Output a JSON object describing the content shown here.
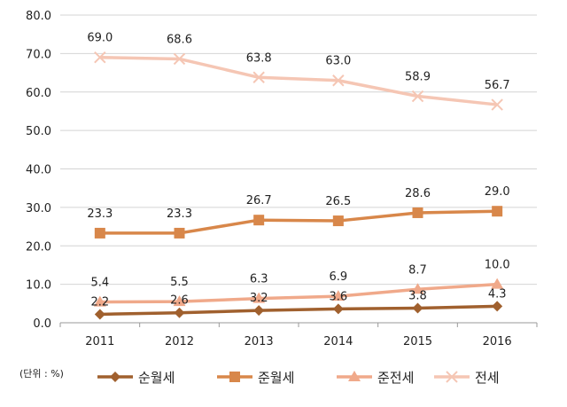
{
  "chart_data": {
    "type": "line",
    "categories": [
      "2011",
      "2012",
      "2013",
      "2014",
      "2015",
      "2016"
    ],
    "ylim": [
      0,
      80
    ],
    "yticks": [
      "0.0",
      "10.0",
      "20.0",
      "30.0",
      "40.0",
      "50.0",
      "60.0",
      "70.0",
      "80.0"
    ],
    "grid": true,
    "legend_position": "bottom",
    "unit_note": "(단위 : %)",
    "series": [
      {
        "name": "순월세",
        "color": "#A0602E",
        "marker": "diamond",
        "values": [
          2.2,
          2.6,
          3.2,
          3.6,
          3.8,
          4.3
        ],
        "labels": [
          "2.2",
          "2.6",
          "3.2",
          "3.6",
          "3.8",
          "4.3"
        ]
      },
      {
        "name": "준월세",
        "color": "#D8874A",
        "marker": "square",
        "values": [
          23.3,
          23.3,
          26.7,
          26.5,
          28.6,
          29.0
        ],
        "labels": [
          "23.3",
          "23.3",
          "26.7",
          "26.5",
          "28.6",
          "29.0"
        ]
      },
      {
        "name": "준전세",
        "color": "#F0A98A",
        "marker": "triangle",
        "values": [
          5.4,
          5.5,
          6.3,
          6.9,
          8.7,
          10.0
        ],
        "labels": [
          "5.4",
          "5.5",
          "6.3",
          "6.9",
          "8.7",
          "10.0"
        ]
      },
      {
        "name": "전세",
        "color": "#F5C6B4",
        "marker": "x",
        "values": [
          69.0,
          68.6,
          63.8,
          63.0,
          58.9,
          56.7
        ],
        "labels": [
          "69.0",
          "68.6",
          "63.8",
          "63.0",
          "58.9",
          "56.7"
        ]
      }
    ]
  }
}
